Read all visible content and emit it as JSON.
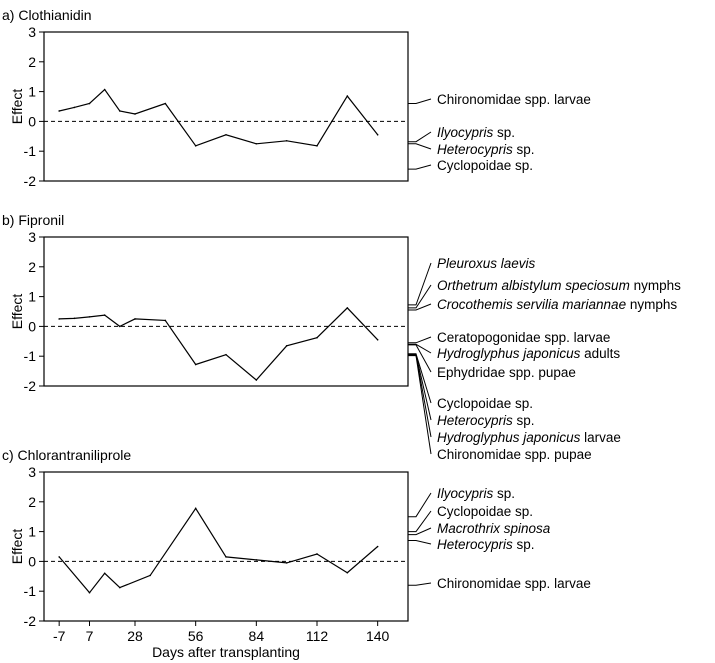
{
  "chart_data": [
    {
      "type": "line",
      "title": "a) Clothianidin",
      "ylabel": "Effect",
      "ylim": [
        -2,
        3
      ],
      "yticks": [
        "-2",
        "-1",
        "0",
        "1",
        "2",
        "3"
      ],
      "reference_line": {
        "y": 0,
        "style": "dashed"
      },
      "x": [
        -7,
        0,
        7,
        14,
        21,
        28,
        42,
        56,
        70,
        84,
        98,
        112,
        126,
        140
      ],
      "values": [
        0.35,
        0.47,
        0.6,
        1.07,
        0.35,
        0.25,
        0.6,
        -0.82,
        -0.45,
        -0.75,
        -0.65,
        -0.82,
        0.85,
        -0.45
      ],
      "annotations": [
        {
          "y": 0.6,
          "parts": [
            {
              "text": "Chironomidae spp. larvae",
              "italic": false
            }
          ]
        },
        {
          "y": -0.68,
          "parts": [
            {
              "text": "Ilyocypris",
              "italic": true
            },
            {
              "text": " sp.",
              "italic": false
            }
          ]
        },
        {
          "y": -0.75,
          "parts": [
            {
              "text": "Heterocypris",
              "italic": true
            },
            {
              "text": " sp.",
              "italic": false
            }
          ]
        },
        {
          "y": -1.6,
          "parts": [
            {
              "text": "Cyclopoidae sp.",
              "italic": false
            }
          ]
        }
      ]
    },
    {
      "type": "line",
      "title": "b) Fipronil",
      "ylabel": "Effect",
      "ylim": [
        -2,
        3
      ],
      "yticks": [
        "-2",
        "-1",
        "0",
        "1",
        "2",
        "3"
      ],
      "reference_line": {
        "y": 0,
        "style": "dashed"
      },
      "x": [
        -7,
        0,
        7,
        14,
        21,
        28,
        42,
        56,
        70,
        84,
        98,
        112,
        126,
        140
      ],
      "values": [
        0.25,
        0.27,
        0.32,
        0.38,
        0.0,
        0.25,
        0.2,
        -1.28,
        -0.95,
        -1.8,
        -0.65,
        -0.38,
        0.62,
        -0.45
      ],
      "annotations": [
        {
          "y": 0.72,
          "parts": [
            {
              "text": "Pleuroxus laevis",
              "italic": true
            }
          ]
        },
        {
          "y": 0.62,
          "parts": [
            {
              "text": "Orthetrum albistylum speciosum",
              "italic": true
            },
            {
              "text": "  nymphs",
              "italic": false
            }
          ]
        },
        {
          "y": 0.55,
          "parts": [
            {
              "text": "Crocothemis servilia mariannae",
              "italic": true
            },
            {
              "text": " nymphs",
              "italic": false
            }
          ]
        },
        {
          "y": -0.55,
          "parts": [
            {
              "text": "Ceratopogonidae spp. larvae",
              "italic": false
            }
          ]
        },
        {
          "y": -0.6,
          "parts": [
            {
              "text": "Hydroglyphus japonicus",
              "italic": true
            },
            {
              "text": "  adults",
              "italic": false
            }
          ]
        },
        {
          "y": -0.62,
          "parts": [
            {
              "text": "Ephydridae spp. pupae",
              "italic": false
            }
          ]
        },
        {
          "y": -0.92,
          "parts": [
            {
              "text": "Cyclopoidae sp.",
              "italic": false
            }
          ]
        },
        {
          "y": -0.94,
          "parts": [
            {
              "text": "Heterocypris",
              "italic": true
            },
            {
              "text": " sp.",
              "italic": false
            }
          ]
        },
        {
          "y": -0.96,
          "parts": [
            {
              "text": "Hydroglyphus japonicus",
              "italic": true
            },
            {
              "text": "  larvae",
              "italic": false
            }
          ]
        },
        {
          "y": -0.98,
          "parts": [
            {
              "text": "Chironomidae spp. pupae",
              "italic": false
            }
          ]
        }
      ]
    },
    {
      "type": "line",
      "title": "c) Chlorantraniliprole",
      "ylabel": "Effect",
      "xlabel": "Days after transplanting",
      "ylim": [
        -2,
        3
      ],
      "yticks": [
        "-2",
        "-1",
        "0",
        "1",
        "2",
        "3"
      ],
      "xticks": [
        -7,
        7,
        28,
        56,
        84,
        112,
        140
      ],
      "xtick_labels": [
        "-7",
        "7",
        "28",
        "56",
        "84",
        "112",
        "140"
      ],
      "reference_line": {
        "y": 0,
        "style": "dashed"
      },
      "x": [
        -7,
        7,
        14,
        21,
        35,
        56,
        70,
        84,
        98,
        112,
        126,
        140
      ],
      "values": [
        0.15,
        -1.05,
        -0.4,
        -0.88,
        -0.47,
        1.78,
        0.15,
        0.05,
        -0.05,
        0.25,
        -0.38,
        0.5
      ],
      "annotations": [
        {
          "y": 1.5,
          "parts": [
            {
              "text": "Ilyocypris",
              "italic": true
            },
            {
              "text": " sp.",
              "italic": false
            }
          ]
        },
        {
          "y": 1.0,
          "parts": [
            {
              "text": "Cyclopoidae sp.",
              "italic": false
            }
          ]
        },
        {
          "y": 0.9,
          "parts": [
            {
              "text": "Macrothrix spinosa",
              "italic": true
            }
          ]
        },
        {
          "y": 0.7,
          "parts": [
            {
              "text": "Heterocypris",
              "italic": true
            },
            {
              "text": " sp.",
              "italic": false
            }
          ]
        },
        {
          "y": -0.8,
          "parts": [
            {
              "text": "Chironomidae spp. larvae",
              "italic": false
            }
          ]
        }
      ]
    }
  ]
}
